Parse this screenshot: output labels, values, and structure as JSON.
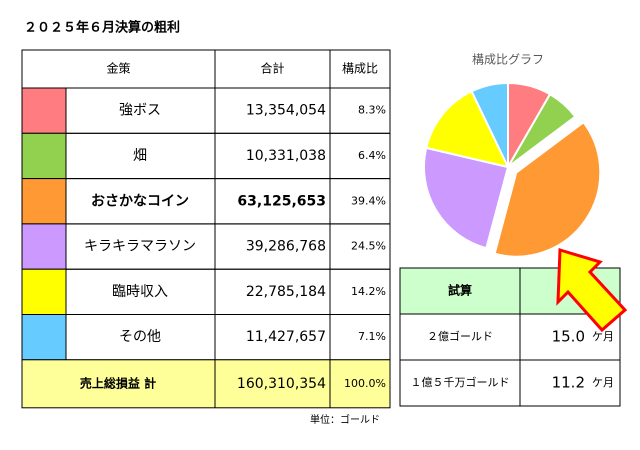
{
  "title": "２０２５年６月決算の粗利",
  "table": {
    "headers": [
      "金策",
      "合計",
      "構成比"
    ],
    "shares": [
      "8.3%",
      "6.4%",
      "39.4%",
      "24.5%",
      "14.2%",
      "7.1%"
    ],
    "bold_rows": [
      2
    ],
    "total": {
      "label": "売上総損益 計",
      "amount": "160,310,354",
      "share": "100.0%"
    },
    "unit_note": "単位：ゴールド"
  },
  "chart_data": {
    "type": "pie",
    "title": "構成比グラフ",
    "categories": [
      "強ボス",
      "畑",
      "おさかなコイン",
      "キラキラマラソン",
      "臨時収入",
      "その他"
    ],
    "values": [
      13354054,
      10331038,
      63125653,
      39286768,
      22785184,
      11427657
    ],
    "value_labels": [
      "13,354,054",
      "10,331,038",
      "63,125,653",
      "39,286,768",
      "22,785,184",
      "11,427,657"
    ],
    "colors": [
      "#ff7c80",
      "#92d050",
      "#ff9933",
      "#cc99ff",
      "#ffff00",
      "#66ccff"
    ],
    "exploded": [
      2
    ]
  },
  "estimate": {
    "header": "試算",
    "rows": [
      {
        "label": "２億ゴールド",
        "value": "15.0",
        "unit": "ケ月"
      },
      {
        "label": "１億５千万ゴールド",
        "value": "11.2",
        "unit": "ケ月"
      }
    ]
  }
}
